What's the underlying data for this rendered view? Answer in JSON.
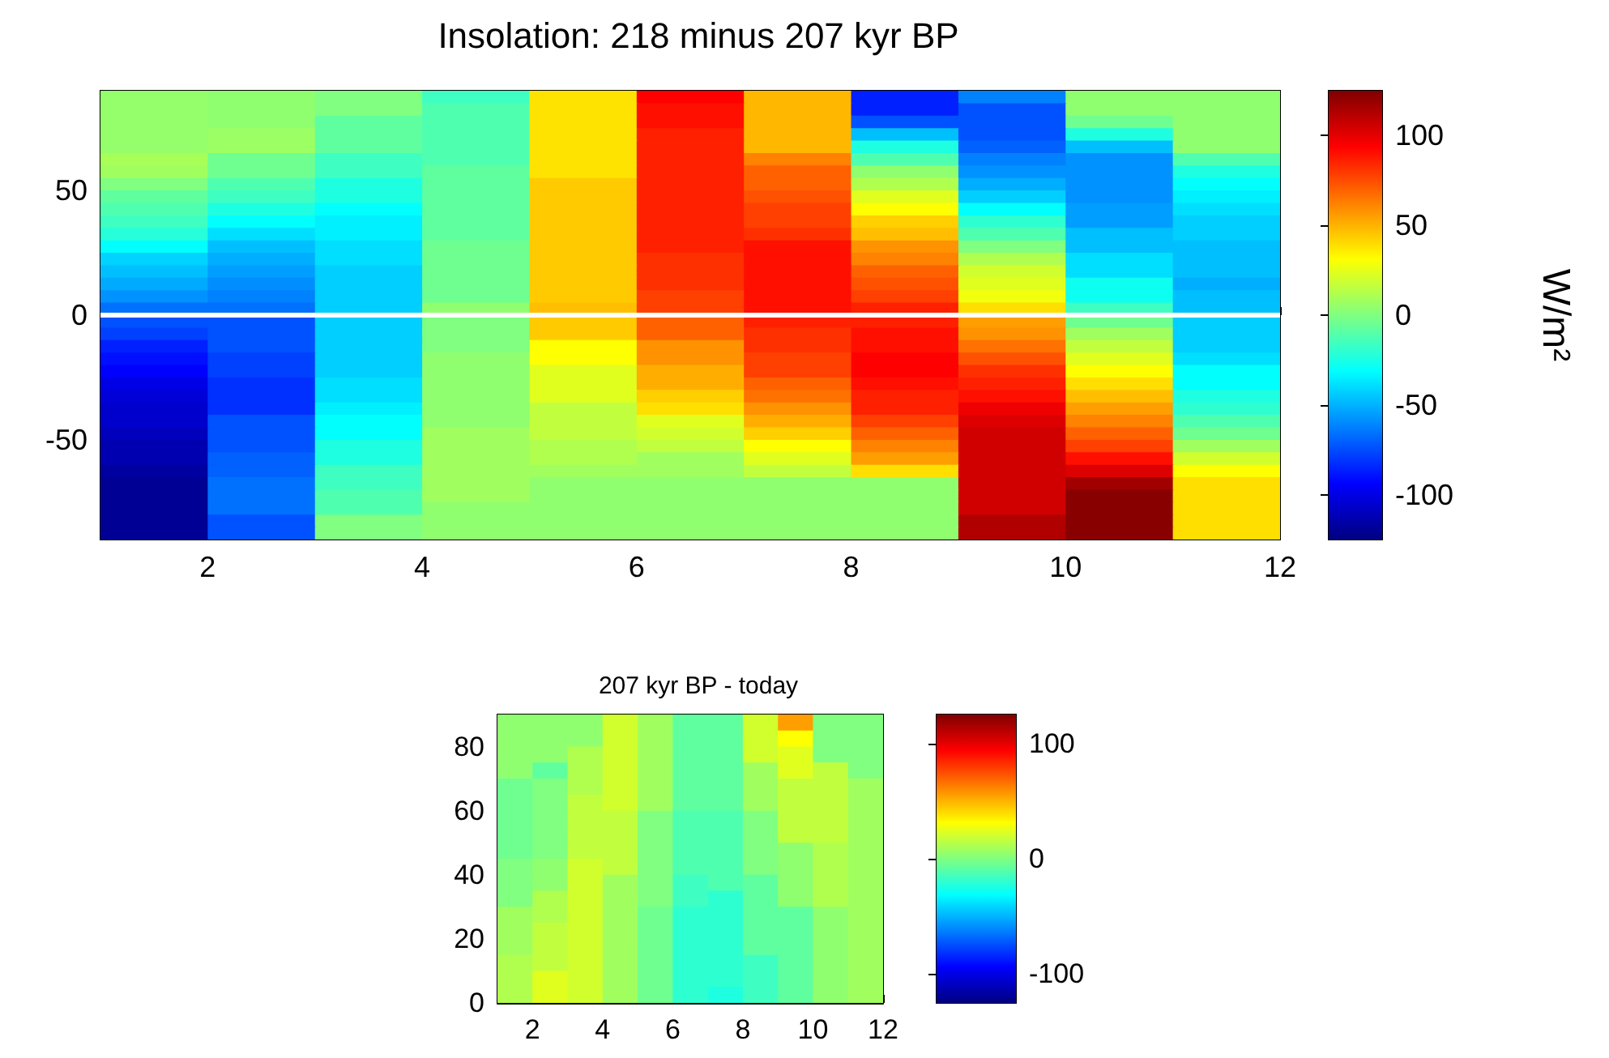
{
  "chart_data": [
    {
      "type": "heatmap",
      "title": "Insolation: 218 minus 207 kyr BP",
      "clabel": "W/m²",
      "xlim": [
        1,
        12
      ],
      "xticks": [
        2,
        4,
        6,
        8,
        10,
        12
      ],
      "ylim": [
        -90,
        90
      ],
      "yticks": [
        -50,
        0,
        50
      ],
      "clim": [
        -125,
        125
      ],
      "cticks": [
        -100,
        -50,
        0,
        50,
        100
      ],
      "ref_lines": [
        {
          "axis": "y",
          "value": 0,
          "color": "#ffffff"
        }
      ],
      "cells": [
        [
          5,
          4,
          0,
          -16,
          38,
          94,
          49,
          -86,
          -62,
          4,
          4
        ],
        [
          5,
          4,
          0,
          -12,
          38,
          90,
          49,
          -86,
          -74,
          4,
          4
        ],
        [
          5,
          4,
          -8,
          -12,
          38,
          90,
          49,
          -74,
          -74,
          -4,
          4
        ],
        [
          5,
          7,
          -8,
          -12,
          38,
          86,
          49,
          -47,
          -74,
          -24,
          4
        ],
        [
          5,
          7,
          -8,
          -12,
          38,
          86,
          49,
          -24,
          -70,
          -47,
          4
        ],
        [
          10,
          -4,
          -16,
          -12,
          38,
          86,
          62,
          -12,
          -62,
          -58,
          -12
        ],
        [
          8,
          -4,
          -16,
          -8,
          38,
          86,
          70,
          4,
          -58,
          -58,
          -24
        ],
        [
          0,
          -12,
          -24,
          -8,
          44,
          86,
          70,
          12,
          -51,
          -58,
          -31
        ],
        [
          -8,
          -16,
          -24,
          -8,
          44,
          86,
          74,
          24,
          -43,
          -58,
          -35
        ],
        [
          -12,
          -24,
          -31,
          -8,
          44,
          86,
          78,
          31,
          -31,
          -55,
          -39
        ],
        [
          -16,
          -31,
          -35,
          -8,
          44,
          86,
          78,
          43,
          -20,
          -55,
          -43
        ],
        [
          -22,
          -39,
          -35,
          -8,
          44,
          86,
          82,
          47,
          -12,
          -47,
          -43
        ],
        [
          -31,
          -47,
          -39,
          -4,
          44,
          86,
          90,
          58,
          0,
          -47,
          -47
        ],
        [
          -42,
          -51,
          -39,
          -4,
          44,
          82,
          90,
          62,
          12,
          -39,
          -47
        ],
        [
          -47,
          -55,
          -43,
          -4,
          44,
          82,
          90,
          70,
          20,
          -39,
          -47
        ],
        [
          -52,
          -59,
          -43,
          -4,
          44,
          82,
          90,
          74,
          24,
          -28,
          -51
        ],
        [
          -58,
          -62,
          -43,
          -4,
          44,
          78,
          90,
          78,
          28,
          -28,
          -47
        ],
        [
          -66,
          -66,
          -43,
          4,
          47,
          78,
          90,
          86,
          39,
          -16,
          -47
        ],
        [
          -74,
          -74,
          -43,
          0,
          44,
          70,
          86,
          86,
          55,
          -4,
          -43
        ],
        [
          -78,
          -74,
          -43,
          0,
          44,
          70,
          82,
          90,
          58,
          8,
          -43
        ],
        [
          -86,
          -74,
          -43,
          0,
          31,
          58,
          82,
          90,
          66,
          16,
          -43
        ],
        [
          -90,
          -78,
          -43,
          4,
          31,
          58,
          78,
          94,
          74,
          24,
          -39
        ],
        [
          -94,
          -78,
          -43,
          4,
          24,
          51,
          78,
          94,
          82,
          31,
          -31
        ],
        [
          -100,
          -82,
          -39,
          4,
          24,
          51,
          70,
          90,
          86,
          39,
          -31
        ],
        [
          -103,
          -82,
          -39,
          4,
          24,
          43,
          66,
          86,
          90,
          47,
          -24
        ],
        [
          -106,
          -82,
          -35,
          4,
          16,
          39,
          58,
          86,
          98,
          55,
          -20
        ],
        [
          -106,
          -74,
          -31,
          4,
          16,
          24,
          51,
          78,
          102,
          62,
          -12
        ],
        [
          -110,
          -74,
          -31,
          8,
          16,
          20,
          43,
          70,
          105,
          70,
          -4
        ],
        [
          -113,
          -74,
          -24,
          8,
          12,
          16,
          31,
          62,
          105,
          78,
          8
        ],
        [
          -113,
          -70,
          -24,
          8,
          12,
          8,
          24,
          55,
          105,
          90,
          20
        ],
        [
          -117,
          -70,
          -16,
          8,
          8,
          8,
          16,
          39,
          105,
          102,
          31
        ],
        [
          -120,
          -66,
          -16,
          8,
          4,
          4,
          4,
          4,
          105,
          117,
          39
        ],
        [
          -120,
          -66,
          -12,
          8,
          4,
          4,
          4,
          4,
          105,
          123,
          39
        ],
        [
          -120,
          -66,
          -12,
          4,
          4,
          4,
          4,
          4,
          105,
          123,
          39
        ],
        [
          -120,
          -74,
          0,
          4,
          4,
          4,
          4,
          4,
          113,
          123,
          39
        ],
        [
          -120,
          -74,
          0,
          4,
          4,
          4,
          4,
          4,
          113,
          123,
          39
        ]
      ]
    },
    {
      "type": "heatmap",
      "title": "207 kyr BP - today",
      "xlim": [
        1,
        12
      ],
      "xticks": [
        2,
        4,
        6,
        8,
        10,
        12
      ],
      "ylim": [
        0,
        90
      ],
      "yticks": [
        0,
        20,
        40,
        60,
        80
      ],
      "clim": [
        -125,
        125
      ],
      "cticks": [
        -100,
        0,
        100
      ],
      "cells": [
        [
          4,
          4,
          4,
          20,
          8,
          -8,
          -8,
          20,
          55,
          0,
          0
        ],
        [
          4,
          4,
          4,
          20,
          8,
          -8,
          -8,
          20,
          31,
          0,
          0
        ],
        [
          4,
          4,
          12,
          20,
          8,
          -8,
          -8,
          20,
          24,
          0,
          0
        ],
        [
          4,
          -8,
          12,
          20,
          8,
          -8,
          -8,
          8,
          24,
          16,
          0
        ],
        [
          -4,
          0,
          12,
          20,
          8,
          -8,
          -8,
          8,
          16,
          16,
          8
        ],
        [
          -4,
          0,
          16,
          20,
          8,
          -8,
          -8,
          8,
          16,
          16,
          8
        ],
        [
          -4,
          0,
          16,
          16,
          0,
          -12,
          -12,
          0,
          16,
          16,
          8
        ],
        [
          -4,
          0,
          16,
          16,
          0,
          -12,
          -12,
          0,
          16,
          16,
          8
        ],
        [
          -4,
          0,
          16,
          16,
          0,
          -12,
          -12,
          0,
          4,
          12,
          8
        ],
        [
          0,
          4,
          20,
          16,
          0,
          -12,
          -12,
          0,
          4,
          12,
          8
        ],
        [
          0,
          4,
          20,
          8,
          0,
          -16,
          -12,
          -8,
          4,
          12,
          8
        ],
        [
          0,
          12,
          20,
          8,
          0,
          -16,
          -20,
          -8,
          4,
          12,
          8
        ],
        [
          8,
          12,
          20,
          8,
          -4,
          -20,
          -20,
          -8,
          -8,
          4,
          8
        ],
        [
          8,
          16,
          20,
          8,
          -4,
          -20,
          -20,
          -8,
          -8,
          4,
          8
        ],
        [
          8,
          16,
          20,
          8,
          -4,
          -20,
          -20,
          -8,
          -8,
          4,
          8
        ],
        [
          12,
          16,
          20,
          8,
          -4,
          -20,
          -20,
          -16,
          -8,
          4,
          8
        ],
        [
          12,
          24,
          20,
          8,
          -4,
          -20,
          -20,
          -16,
          -8,
          4,
          8
        ],
        [
          12,
          24,
          20,
          8,
          -4,
          -20,
          -24,
          -16,
          -8,
          4,
          8
        ]
      ]
    }
  ]
}
